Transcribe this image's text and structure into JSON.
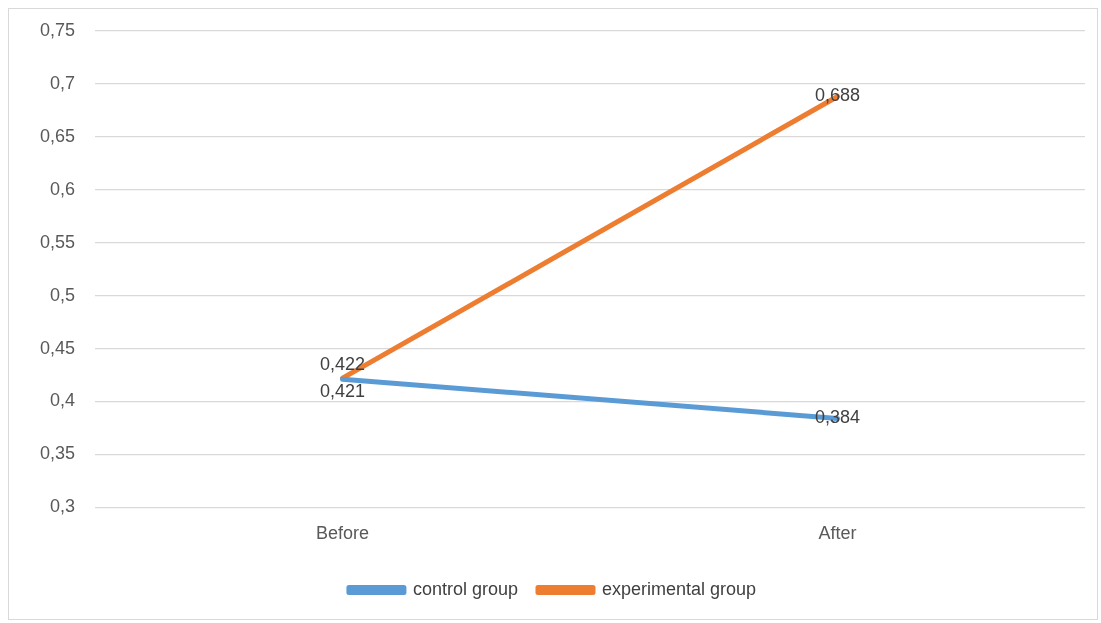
{
  "chart_data": {
    "type": "line",
    "categories": [
      "Before",
      "After"
    ],
    "series": [
      {
        "name": "control group",
        "color": "#5b9bd5",
        "values": [
          0.421,
          0.384
        ],
        "value_labels": [
          "0,421",
          "0,384"
        ]
      },
      {
        "name": "experimental group",
        "color": "#ed7d31",
        "values": [
          0.422,
          0.688
        ],
        "value_labels": [
          "0,422",
          "0,688"
        ]
      }
    ],
    "ylim": [
      0.3,
      0.75
    ],
    "yticks": [
      {
        "value": 0.3,
        "label": "0,3"
      },
      {
        "value": 0.35,
        "label": "0,35"
      },
      {
        "value": 0.4,
        "label": "0,4"
      },
      {
        "value": 0.45,
        "label": "0,45"
      },
      {
        "value": 0.5,
        "label": "0,5"
      },
      {
        "value": 0.55,
        "label": "0,55"
      },
      {
        "value": 0.6,
        "label": "0,6"
      },
      {
        "value": 0.65,
        "label": "0,65"
      },
      {
        "value": 0.7,
        "label": "0,7"
      },
      {
        "value": 0.75,
        "label": "0,75"
      }
    ],
    "grid": "y",
    "legend": "bottom",
    "marker": "none",
    "line_style": "solid"
  }
}
